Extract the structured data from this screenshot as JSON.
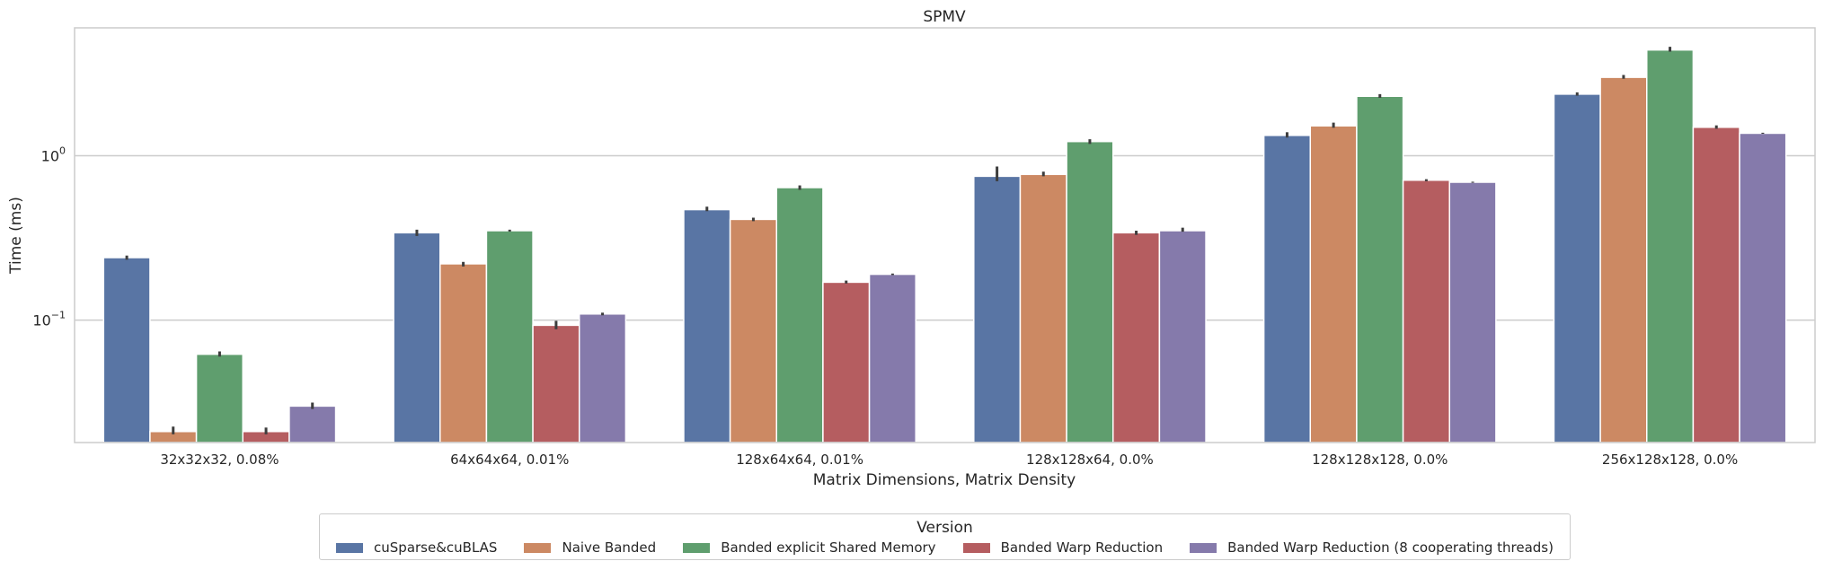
{
  "chart_data": {
    "type": "bar",
    "title": "SPMV",
    "xlabel": "Matrix Dimensions, Matrix Density",
    "ylabel": "Time (ms)",
    "yscale": "log",
    "ylim": [
      0.018,
      6.0
    ],
    "yticks": [
      {
        "value": 1.0,
        "base": "10",
        "exp": "0"
      },
      {
        "value": 0.1,
        "base": "10",
        "exp": "−1"
      }
    ],
    "grid": "horizontal",
    "legend_position": "bottom-center",
    "categories": [
      "32x32x32, 0.08%",
      "64x64x64, 0.01%",
      "128x64x64, 0.01%",
      "128x128x64, 0.0%",
      "128x128x128, 0.0%",
      "256x128x128, 0.0%"
    ],
    "series": [
      {
        "name": "cuSparse&cuBLAS",
        "color": "#5975a4",
        "values": [
          0.24,
          0.34,
          0.47,
          0.75,
          1.33,
          2.37
        ]
      },
      {
        "name": "Naive Banded",
        "color": "#cc8963",
        "values": [
          0.021,
          0.22,
          0.41,
          0.77,
          1.52,
          3.0
        ]
      },
      {
        "name": "Banded explicit Shared Memory",
        "color": "#5f9e6e",
        "values": [
          0.062,
          0.35,
          0.64,
          1.22,
          2.3,
          4.4
        ]
      },
      {
        "name": "Banded Warp Reduction",
        "color": "#b55d60",
        "values": [
          0.021,
          0.093,
          0.17,
          0.34,
          0.71,
          1.49
        ]
      },
      {
        "name": "Banded Warp Reduction (8 cooperating threads)",
        "color": "#857aab",
        "values": [
          0.03,
          0.109,
          0.19,
          0.35,
          0.69,
          1.37
        ]
      }
    ],
    "error_bars": [
      [
        [
          0.233,
          0.247
        ],
        [
          0.0202,
          0.0225
        ],
        [
          0.06,
          0.0645
        ],
        [
          0.0202,
          0.0222
        ],
        [
          0.0288,
          0.0315
        ]
      ],
      [
        [
          0.325,
          0.355
        ],
        [
          0.212,
          0.226
        ],
        [
          0.346,
          0.355
        ],
        [
          0.088,
          0.099
        ],
        [
          0.107,
          0.111
        ]
      ],
      [
        [
          0.46,
          0.49
        ],
        [
          0.4,
          0.42
        ],
        [
          0.62,
          0.66
        ],
        [
          0.167,
          0.174
        ],
        [
          0.188,
          0.192
        ]
      ],
      [
        [
          0.7,
          0.86
        ],
        [
          0.75,
          0.8
        ],
        [
          1.18,
          1.26
        ],
        [
          0.33,
          0.35
        ],
        [
          0.345,
          0.365
        ]
      ],
      [
        [
          1.29,
          1.39
        ],
        [
          1.48,
          1.59
        ],
        [
          2.25,
          2.37
        ],
        [
          0.7,
          0.72
        ],
        [
          0.685,
          0.695
        ]
      ],
      [
        [
          2.32,
          2.43
        ],
        [
          2.94,
          3.1
        ],
        [
          4.3,
          4.6
        ],
        [
          1.46,
          1.53
        ],
        [
          1.36,
          1.38
        ]
      ]
    ]
  },
  "legend": {
    "title": "Version",
    "items": [
      "cuSparse&cuBLAS",
      "Naive Banded",
      "Banded explicit Shared Memory",
      "Banded Warp Reduction",
      "Banded Warp Reduction (8 cooperating threads)"
    ]
  }
}
